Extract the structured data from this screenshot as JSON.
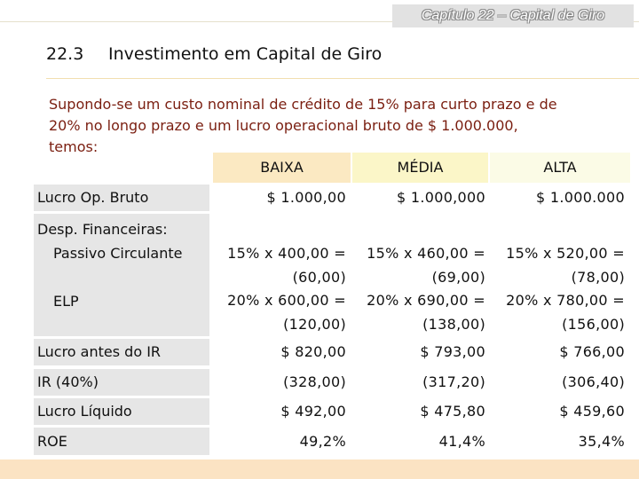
{
  "header": {
    "chapter": "Capítulo 22 – Capital de Giro",
    "section_number": "22.3",
    "section_title": "Investimento em Capital de Giro"
  },
  "intro": {
    "line1": "Supondo-se um custo nominal de crédito de 15% para curto prazo e de",
    "line2": "20% no longo prazo e um lucro operacional bruto de $ 1.000.000,",
    "line3": "temos:"
  },
  "table": {
    "columns": [
      "BAIXA",
      "MÉDIA",
      "ALTA"
    ],
    "rows": [
      {
        "label": "Lucro Op. Bruto",
        "values": [
          "$ 1.000,00",
          "$ 1.000,000",
          "$ 1.000.000"
        ]
      },
      {
        "label": "Desp. Financeiras:",
        "sublabel_pc": "Passivo Circulante",
        "sublabel_elp": "ELP",
        "values": [
          [
            "15% x 400,00 =",
            "(60,00)",
            "20% x 600,00 =",
            "(120,00)"
          ],
          [
            "15% x 460,00 =",
            "(69,00)",
            "20% x 690,00 =",
            "(138,00)"
          ],
          [
            "15% x 520,00 =",
            "(78,00)",
            "20% x 780,00 =",
            "(156,00)"
          ]
        ]
      },
      {
        "label": "Lucro antes do IR",
        "values": [
          "$ 820,00",
          "$ 793,00",
          "$ 766,00"
        ]
      },
      {
        "label": "IR (40%)",
        "values": [
          "(328,00)",
          "(317,20)",
          "(306,40)"
        ]
      },
      {
        "label": "Lucro Líquido",
        "values": [
          "$ 492,00",
          "$ 475,80",
          "$ 459,60"
        ]
      },
      {
        "label": "ROE",
        "values": [
          "49,2%",
          "41,4%",
          "35,4%"
        ]
      }
    ]
  },
  "colors": {
    "intro_text": "#7a1e10",
    "label_bg": "#e6e6e6",
    "baixa_bg": "#fbe9c2",
    "media_bg": "#fbf6c8",
    "alta_bg": "#fbfbe6"
  }
}
